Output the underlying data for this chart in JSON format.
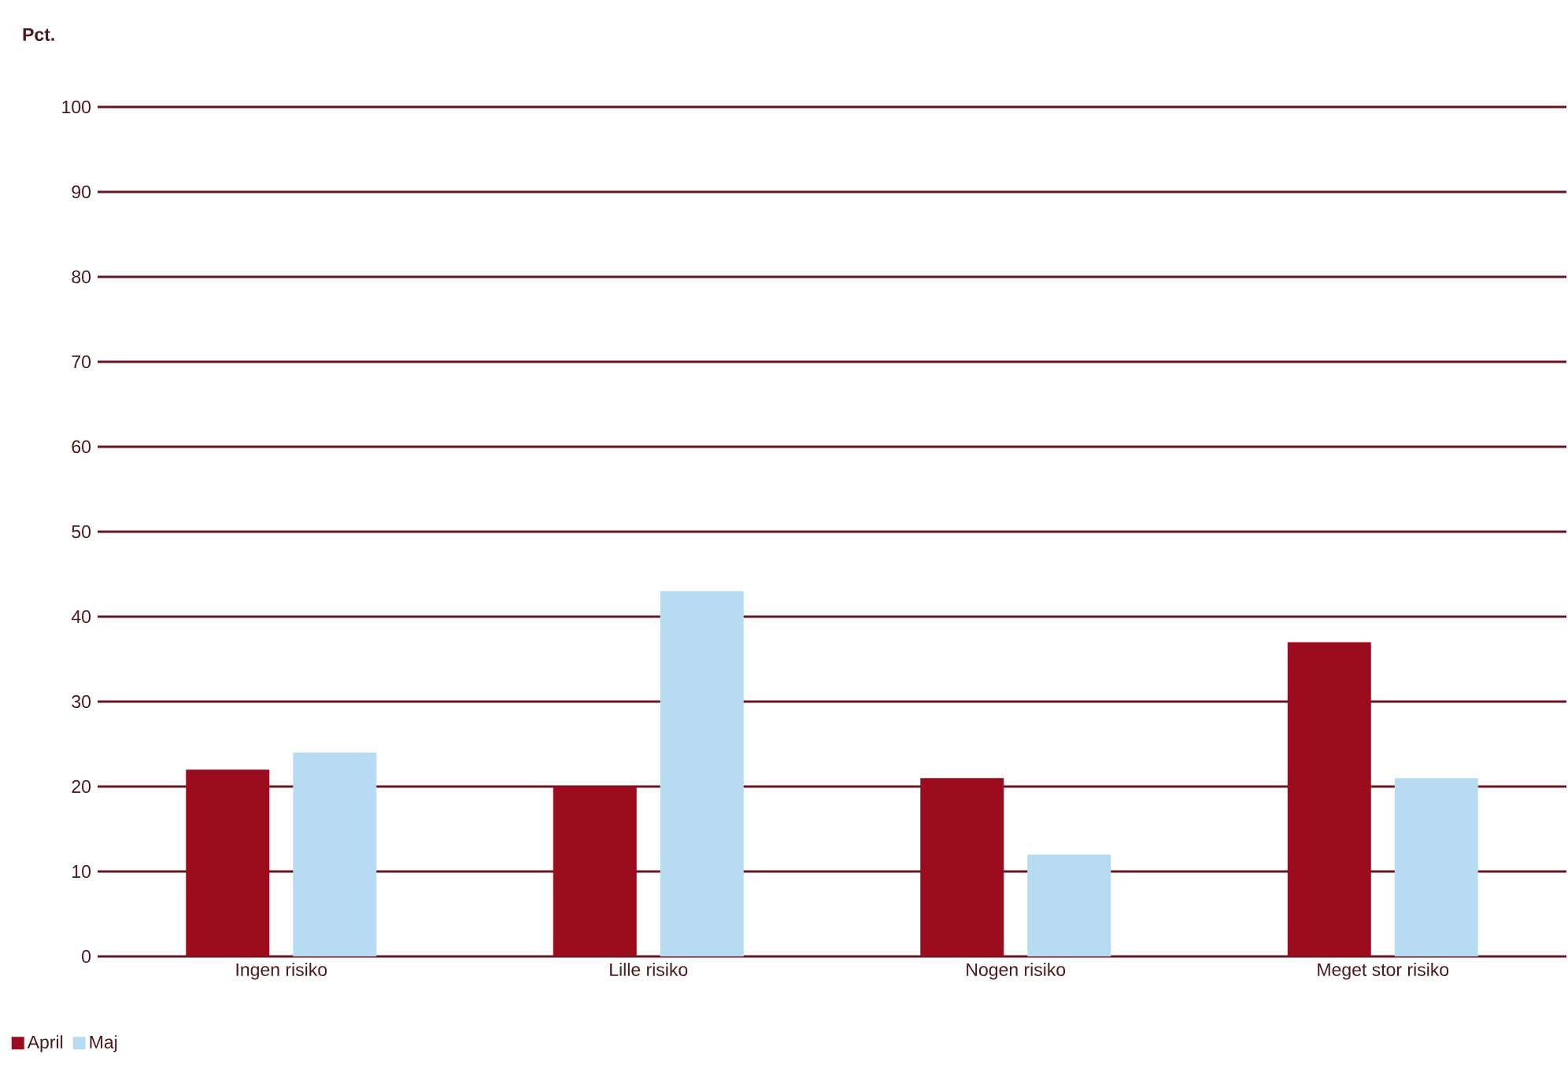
{
  "chart_data": {
    "type": "bar",
    "ylabel": "Pct.",
    "categories": [
      "Ingen risiko",
      "Lille risiko",
      "Nogen risiko",
      "Meget stor risiko"
    ],
    "series": [
      {
        "name": "April",
        "color": "#9b0d1e",
        "values": [
          22,
          20,
          21,
          37
        ]
      },
      {
        "name": "Maj",
        "color": "#b7dcf2",
        "values": [
          24,
          43,
          12,
          21
        ]
      }
    ],
    "ylim": [
      0,
      100
    ],
    "yticks": [
      0,
      10,
      20,
      30,
      40,
      50,
      60,
      70,
      80,
      90,
      100
    ],
    "grid": "y",
    "legend": "bottom left"
  }
}
